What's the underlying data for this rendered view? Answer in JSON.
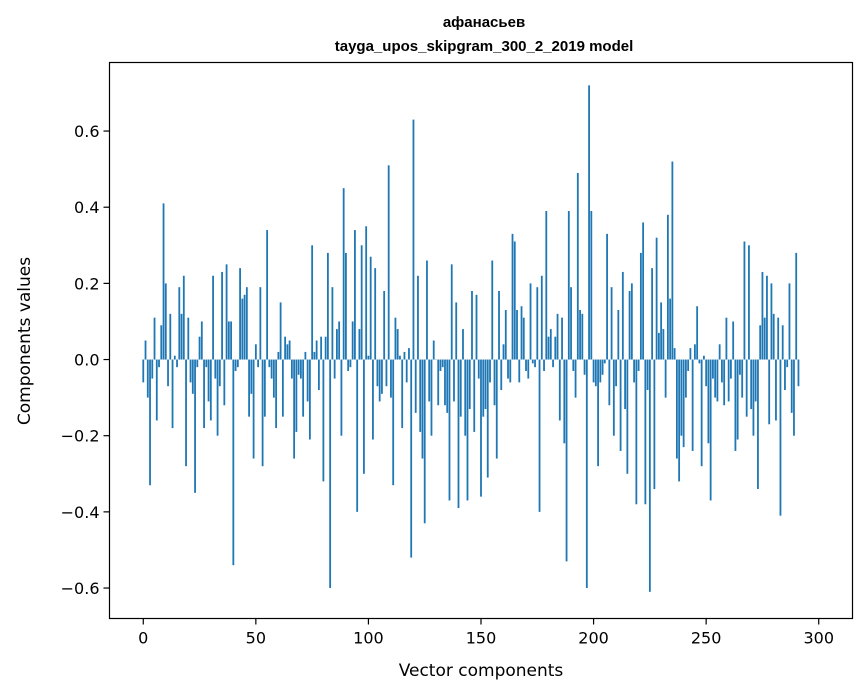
{
  "chart_data": {
    "type": "bar",
    "title": "афанасьев",
    "subtitle": "tayga_upos_skipgram_300_2_2019 model",
    "xlabel": "Vector components",
    "ylabel": "Components values",
    "xlim": [
      -15,
      315
    ],
    "ylim": [
      -0.68,
      0.78
    ],
    "x_ticks": [
      0,
      50,
      100,
      150,
      200,
      250,
      300
    ],
    "x_tick_labels": [
      "0",
      "50",
      "100",
      "150",
      "200",
      "250",
      "300"
    ],
    "y_ticks": [
      -0.6,
      -0.4,
      -0.2,
      0.0,
      0.2,
      0.4,
      0.6
    ],
    "y_tick_labels": [
      "−0.6",
      "−0.4",
      "−0.2",
      "0.0",
      "0.2",
      "0.4",
      "0.6"
    ],
    "grid": false,
    "bar_color": "#1f77b4",
    "values": [
      -0.06,
      0.05,
      -0.1,
      -0.33,
      -0.05,
      0.11,
      -0.16,
      -0.02,
      0.09,
      0.41,
      0.2,
      -0.07,
      0.12,
      -0.18,
      0.01,
      -0.02,
      0.19,
      0.12,
      0.22,
      -0.28,
      0.11,
      -0.06,
      -0.09,
      -0.35,
      -0.02,
      0.06,
      0.1,
      -0.18,
      -0.02,
      -0.11,
      -0.16,
      0.22,
      -0.05,
      -0.2,
      -0.07,
      0.23,
      -0.12,
      0.25,
      0.1,
      0.1,
      -0.54,
      -0.03,
      -0.02,
      0.24,
      0.16,
      0.17,
      0.19,
      -0.15,
      -0.09,
      -0.26,
      0.04,
      -0.02,
      0.19,
      -0.28,
      -0.15,
      0.34,
      -0.02,
      -0.05,
      -0.1,
      -0.18,
      0.02,
      0.15,
      -0.15,
      0.06,
      0.04,
      0.05,
      -0.05,
      -0.26,
      -0.19,
      -0.04,
      -0.05,
      -0.15,
      0.02,
      -0.11,
      -0.21,
      0.3,
      0.02,
      0.05,
      -0.08,
      0.06,
      -0.32,
      0.06,
      0.28,
      -0.6,
      0.19,
      -0.05,
      0.08,
      0.1,
      -0.2,
      0.45,
      0.28,
      -0.03,
      -0.02,
      0.1,
      0.34,
      -0.4,
      0.08,
      0.3,
      -0.3,
      0.35,
      0.01,
      0.27,
      -0.21,
      0.24,
      -0.07,
      -0.11,
      -0.09,
      0.18,
      -0.07,
      0.51,
      -0.1,
      -0.33,
      0.11,
      0.08,
      0.01,
      -0.18,
      0.02,
      -0.06,
      0.03,
      -0.52,
      0.63,
      -0.14,
      0.22,
      -0.19,
      -0.26,
      -0.43,
      0.26,
      -0.11,
      -0.2,
      0.05,
      0.0,
      -0.12,
      -0.03,
      -0.02,
      -0.12,
      -0.14,
      -0.37,
      0.25,
      -0.11,
      0.15,
      -0.39,
      -0.15,
      0.08,
      -0.2,
      -0.37,
      -0.13,
      0.18,
      -0.19,
      0.17,
      -0.05,
      -0.36,
      -0.15,
      -0.13,
      -0.31,
      -0.06,
      0.26,
      -0.12,
      -0.26,
      0.18,
      -0.08,
      0.04,
      0.13,
      -0.05,
      -0.06,
      0.33,
      0.31,
      0.13,
      -0.06,
      0.14,
      0.11,
      -0.03,
      -0.05,
      0.2,
      -0.01,
      -0.02,
      0.19,
      -0.4,
      0.22,
      -0.03,
      0.39,
      0.06,
      0.08,
      -0.02,
      0.06,
      0.12,
      -0.16,
      0.11,
      -0.22,
      -0.53,
      0.39,
      0.19,
      -0.03,
      -0.1,
      0.49,
      0.13,
      0.12,
      -0.04,
      -0.6,
      0.72,
      0.39,
      -0.06,
      -0.07,
      -0.28,
      -0.06,
      -0.04,
      -0.01,
      0.33,
      -0.12,
      0.19,
      -0.2,
      -0.07,
      0.13,
      -0.24,
      0.23,
      -0.13,
      -0.3,
      0.18,
      0.2,
      -0.06,
      -0.38,
      -0.03,
      0.28,
      0.36,
      -0.38,
      -0.08,
      -0.61,
      0.24,
      -0.34,
      0.32,
      0.07,
      0.15,
      0.08,
      -0.1,
      0.38,
      0.16,
      0.52,
      0.03,
      -0.26,
      -0.32,
      -0.2,
      -0.23,
      -0.1,
      -0.03,
      0.03,
      -0.24,
      0.04,
      0.14,
      -0.01,
      -0.28,
      0.01,
      -0.07,
      -0.22,
      -0.37,
      -0.05,
      -0.1,
      -0.11,
      0.04,
      -0.06,
      -0.12,
      0.11,
      -0.11,
      -0.05,
      0.1,
      -0.24,
      -0.21,
      -0.04,
      -0.1,
      0.31,
      -0.15,
      0.3,
      -0.13,
      -0.2,
      -0.11,
      -0.34,
      0.09,
      0.23,
      0.11,
      0.22,
      -0.17,
      0.2,
      0.12,
      -0.16,
      0.11,
      -0.41,
      0.09,
      -0.08,
      -0.02,
      0.2,
      -0.14,
      -0.2,
      0.28,
      -0.07
    ]
  }
}
